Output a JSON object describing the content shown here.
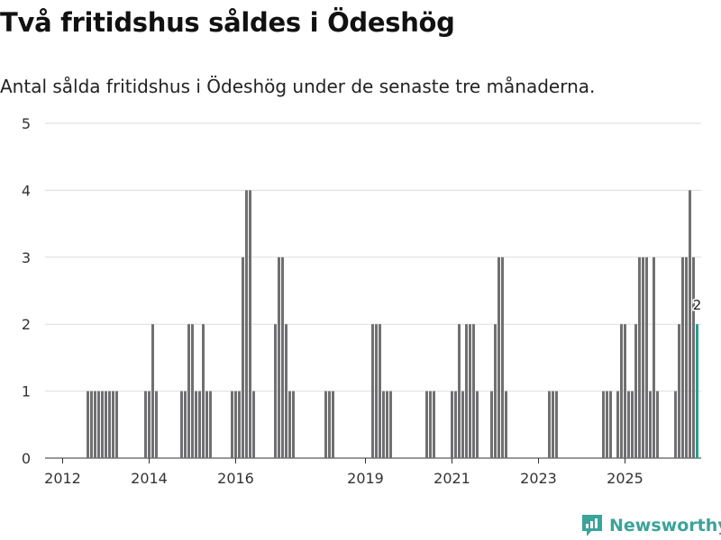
{
  "title": "Två fritidshus såldes i Ödeshög",
  "subtitle": "Antal sålda fritidshus i Ödeshög under de senaste tre månaderna.",
  "brand": "Newsworthy",
  "colors": {
    "bar": "#707072",
    "highlight": "#2a9d8f",
    "grid": "#dddddd",
    "brand": "#3aa39a"
  },
  "chart_data": {
    "type": "bar",
    "title": "Två fritidshus såldes i Ödeshög",
    "subtitle": "Antal sålda fritidshus i Ödeshög under de senaste tre månaderna.",
    "xlabel": "",
    "ylabel": "",
    "ylim": [
      0,
      5
    ],
    "yticks": [
      0,
      1,
      2,
      3,
      4,
      5
    ],
    "xticks": [
      {
        "label": "2012",
        "index": 2
      },
      {
        "label": "2014",
        "index": 26
      },
      {
        "label": "2016",
        "index": 50
      },
      {
        "label": "2019",
        "index": 86
      },
      {
        "label": "2021",
        "index": 110
      },
      {
        "label": "2023",
        "index": 134
      },
      {
        "label": "2025",
        "index": 158
      }
    ],
    "x_start": "2011-10",
    "grid": true,
    "highlight_last": true,
    "last_label": "2",
    "values": [
      0,
      0,
      0,
      0,
      0,
      0,
      0,
      0,
      0,
      1,
      1,
      1,
      1,
      1,
      1,
      1,
      1,
      1,
      0,
      0,
      0,
      0,
      0,
      0,
      0,
      1,
      1,
      2,
      1,
      0,
      0,
      0,
      0,
      0,
      0,
      1,
      1,
      2,
      2,
      1,
      1,
      2,
      1,
      1,
      0,
      0,
      0,
      0,
      0,
      1,
      1,
      1,
      3,
      4,
      4,
      1,
      0,
      0,
      0,
      0,
      0,
      2,
      3,
      3,
      2,
      1,
      1,
      0,
      0,
      0,
      0,
      0,
      0,
      0,
      0,
      1,
      1,
      1,
      0,
      0,
      0,
      0,
      0,
      0,
      0,
      0,
      0,
      0,
      2,
      2,
      2,
      1,
      1,
      1,
      0,
      0,
      0,
      0,
      0,
      0,
      0,
      0,
      0,
      1,
      1,
      1,
      0,
      0,
      0,
      0,
      1,
      1,
      2,
      1,
      2,
      2,
      2,
      1,
      0,
      0,
      0,
      1,
      2,
      3,
      3,
      1,
      0,
      0,
      0,
      0,
      0,
      0,
      0,
      0,
      0,
      0,
      0,
      1,
      1,
      1,
      0,
      0,
      0,
      0,
      0,
      0,
      0,
      0,
      0,
      0,
      0,
      0,
      1,
      1,
      1,
      0,
      1,
      2,
      2,
      1,
      1,
      2,
      3,
      3,
      3,
      1,
      3,
      1,
      0,
      0,
      0,
      0,
      1,
      2,
      3,
      3,
      4,
      3,
      2
    ]
  }
}
